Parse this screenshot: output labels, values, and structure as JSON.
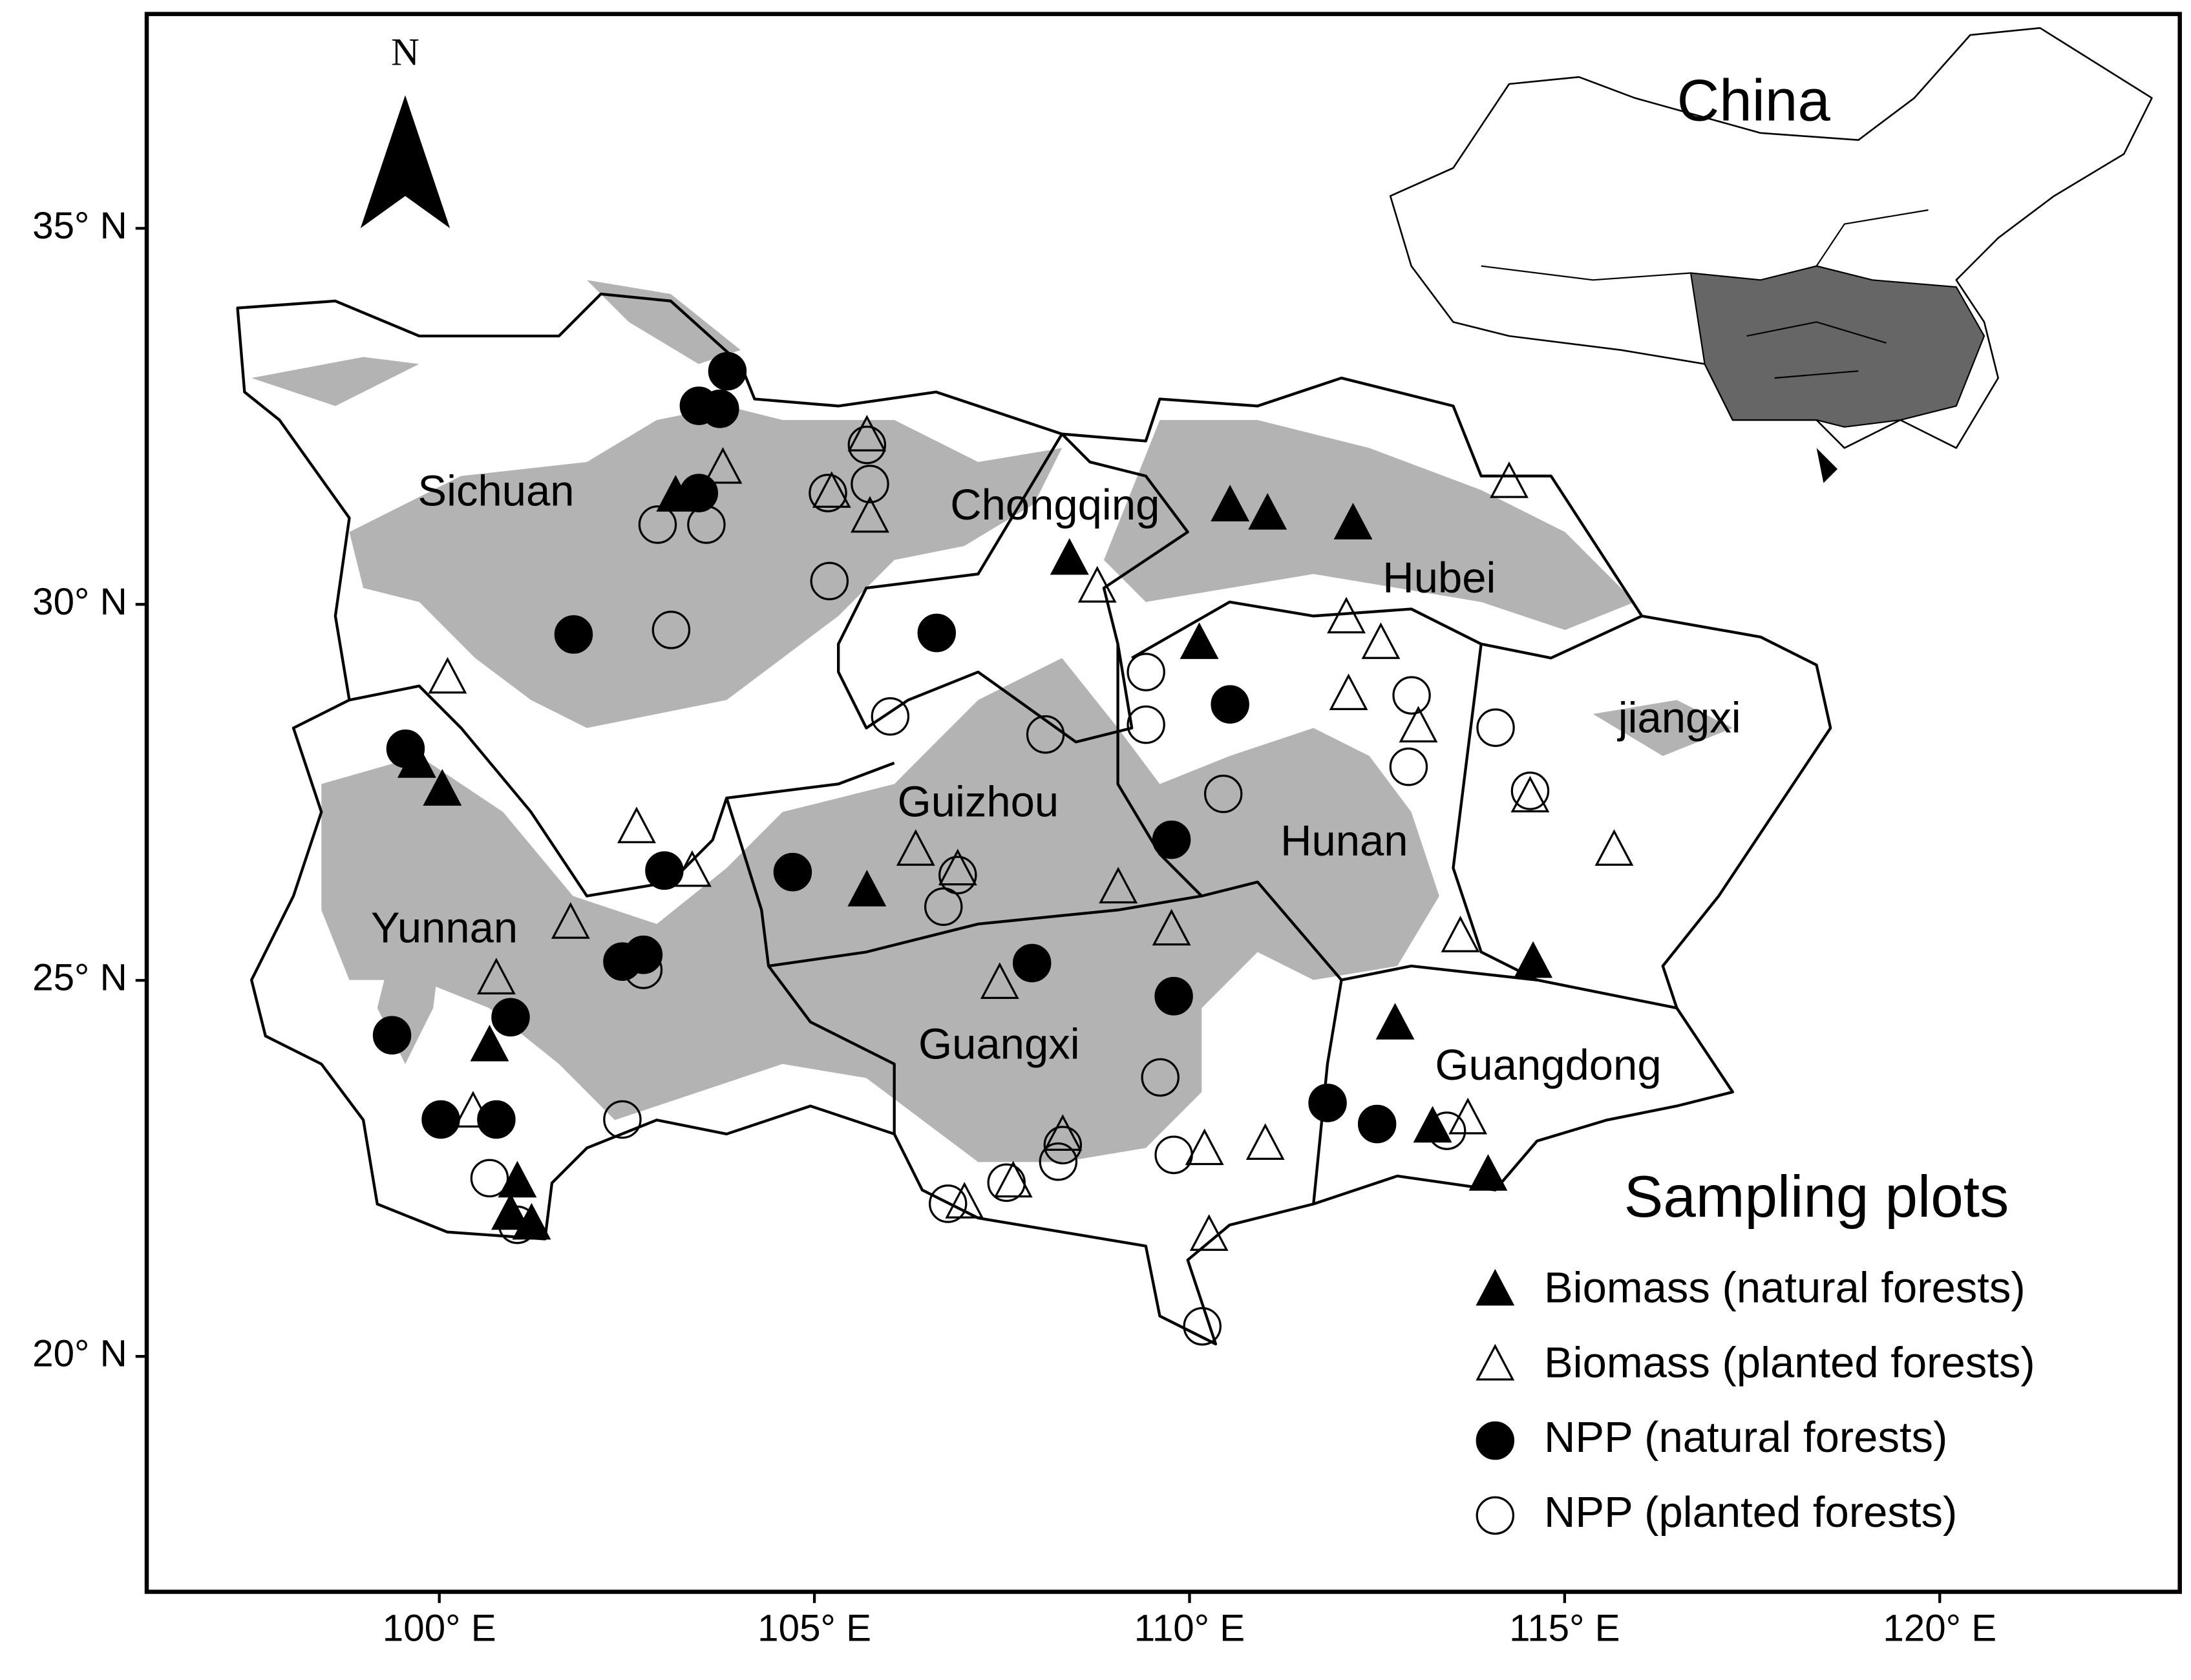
{
  "map": {
    "north": "N",
    "inset_title": "China",
    "region_labels": [
      "Sichuan",
      "Chongqing",
      "Hubei",
      "jiangxi",
      "Guizhou",
      "Hunan",
      "Yunnan",
      "Guangxi",
      "Guangdong"
    ],
    "xlim": [
      96.1,
      123.2
    ],
    "ylim": [
      16.87,
      37.85
    ],
    "xticks": [
      {
        "value": 100,
        "label": "100° E"
      },
      {
        "value": 105,
        "label": "105° E"
      },
      {
        "value": 110,
        "label": "110° E"
      },
      {
        "value": 115,
        "label": "115° E"
      },
      {
        "value": 120,
        "label": "120° E"
      }
    ],
    "yticks": [
      {
        "value": 20,
        "label": "20° N"
      },
      {
        "value": 25,
        "label": "25° N"
      },
      {
        "value": 30,
        "label": "30° N"
      },
      {
        "value": 35,
        "label": "35° N"
      }
    ],
    "legend_title": "Sampling plots",
    "series": [
      {
        "name": "Biomass (natural forests)",
        "marker": "triangle",
        "filled": true,
        "color": "#000000",
        "lon": [
          103.15,
          110.54,
          111.04,
          112.18,
          108.4,
          110.13,
          100.04,
          99.7,
          100.67,
          101.04,
          100.95,
          101.23,
          105.7,
          112.74,
          114.58,
          113.24,
          113.98
        ],
        "lat": [
          31.43,
          31.3,
          31.19,
          31.06,
          30.59,
          29.47,
          27.52,
          27.89,
          24.12,
          22.31,
          21.88,
          21.75,
          26.18,
          24.41,
          25.23,
          23.04,
          22.4
        ]
      },
      {
        "name": "Biomass (planted forests)",
        "marker": "triangle",
        "filled": false,
        "color": "#000000",
        "lon": [
          103.78,
          105.7,
          105.23,
          105.74,
          114.26,
          108.77,
          112.09,
          112.55,
          112.12,
          100.11,
          102.63,
          103.37,
          101.75,
          100.76,
          106.35,
          106.91,
          109.05,
          109.76,
          107.47,
          113.05,
          113.61,
          114.54,
          115.66,
          110.2,
          111.01,
          113.71,
          108.31,
          107.0,
          107.65,
          100.45,
          110.26
        ],
        "lat": [
          31.8,
          32.23,
          31.48,
          31.15,
          31.61,
          30.22,
          29.81,
          29.47,
          28.79,
          29.01,
          27.02,
          26.44,
          25.75,
          25.01,
          26.72,
          26.46,
          26.22,
          25.66,
          24.95,
          28.36,
          25.57,
          27.43,
          26.72,
          22.74,
          22.81,
          23.15,
          22.93,
          22.03,
          22.31,
          23.24,
          21.6
        ]
      },
      {
        "name": "NPP (natural forests)",
        "marker": "circle",
        "filled": true,
        "color": "#000000",
        "lon": [
          103.84,
          103.46,
          103.74,
          103.46,
          101.79,
          99.55,
          106.63,
          110.54,
          103.0,
          104.71,
          109.76,
          102.44,
          102.72,
          107.9,
          109.79,
          100.95,
          99.37,
          100.02,
          100.76,
          111.84,
          112.5
        ],
        "lat": [
          33.1,
          32.64,
          32.6,
          31.48,
          29.6,
          28.08,
          29.62,
          28.67,
          26.46,
          26.44,
          26.87,
          25.25,
          25.34,
          25.23,
          24.79,
          24.51,
          24.27,
          23.15,
          23.15,
          23.37,
          23.09
        ]
      },
      {
        "name": "NPP (planted forests)",
        "marker": "circle",
        "filled": false,
        "color": "#000000",
        "lon": [
          103.09,
          105.2,
          105.18,
          105.7,
          105.74,
          102.91,
          103.56,
          109.42,
          109.42,
          108.08,
          106.01,
          110.45,
          112.92,
          114.08,
          114.54,
          112.96,
          106.91,
          106.72,
          102.72,
          102.44,
          109.61,
          108.31,
          108.25,
          109.79,
          107.56,
          106.78,
          100.67,
          101.04,
          110.17,
          113.43
        ],
        "lat": [
          29.66,
          30.31,
          31.48,
          32.12,
          31.6,
          31.06,
          31.06,
          29.1,
          28.4,
          28.27,
          28.51,
          27.48,
          27.84,
          28.36,
          27.52,
          28.79,
          26.4,
          25.98,
          25.14,
          23.15,
          23.71,
          22.81,
          22.59,
          22.68,
          22.31,
          22.03,
          22.37,
          21.75,
          20.4,
          23.0
        ]
      }
    ]
  }
}
